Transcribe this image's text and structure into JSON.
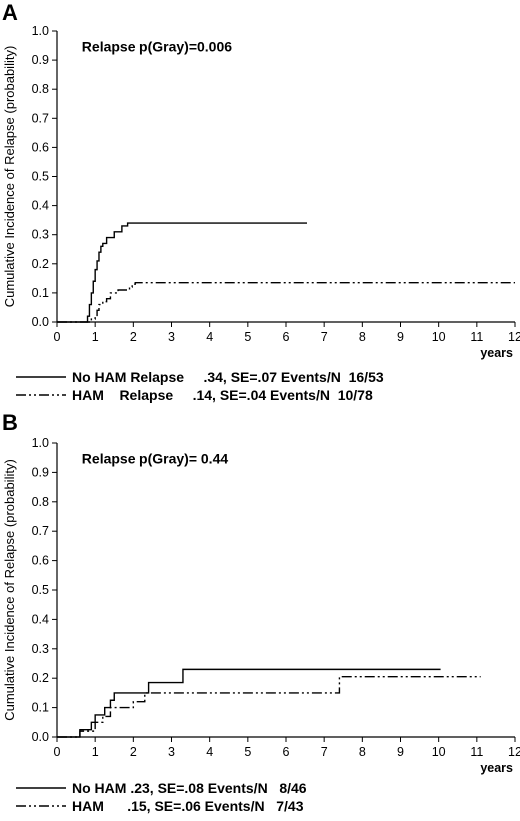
{
  "chart_data": [
    {
      "type": "line",
      "panel_label": "A",
      "ylabel": "Cumulative Incidence of Relapse (probability)",
      "xlabel": "years",
      "xlim": [
        0,
        12
      ],
      "ylim": [
        0,
        1.0
      ],
      "x_ticks": [
        "0",
        "1",
        "2",
        "3",
        "4",
        "5",
        "6",
        "7",
        "8",
        "9",
        "10",
        "11",
        "12"
      ],
      "y_ticks": [
        "0.0",
        "0.1",
        "0.2",
        "0.3",
        "0.4",
        "0.5",
        "0.6",
        "0.7",
        "0.8",
        "0.9",
        "1.0"
      ],
      "annotation_left": "Relapse",
      "annotation_right": "p(Gray)=0.006",
      "series": [
        {
          "style": "solid",
          "step_points": [
            [
              0,
              0
            ],
            [
              0.75,
              0
            ],
            [
              0.8,
              0.02
            ],
            [
              0.85,
              0.06
            ],
            [
              0.9,
              0.1
            ],
            [
              0.95,
              0.14
            ],
            [
              1.0,
              0.18
            ],
            [
              1.05,
              0.21
            ],
            [
              1.1,
              0.24
            ],
            [
              1.15,
              0.26
            ],
            [
              1.2,
              0.27
            ],
            [
              1.3,
              0.29
            ],
            [
              1.5,
              0.31
            ],
            [
              1.65,
              0.31
            ],
            [
              1.7,
              0.33
            ],
            [
              1.85,
              0.34
            ],
            [
              6.55,
              0.34
            ]
          ]
        },
        {
          "style": "dash-dot-dot",
          "step_points": [
            [
              0,
              0
            ],
            [
              0.85,
              0
            ],
            [
              0.9,
              0.01
            ],
            [
              1.0,
              0.02
            ],
            [
              1.05,
              0.04
            ],
            [
              1.1,
              0.06
            ],
            [
              1.2,
              0.07
            ],
            [
              1.3,
              0.08
            ],
            [
              1.4,
              0.1
            ],
            [
              1.6,
              0.11
            ],
            [
              1.9,
              0.12
            ],
            [
              1.97,
              0.13
            ],
            [
              2.05,
              0.135
            ],
            [
              12.0,
              0.135
            ]
          ]
        }
      ],
      "legend": [
        {
          "style": "solid",
          "text": "No HAM Relapse     .34, SE=.07 Events/N  16/53"
        },
        {
          "style": "dash-dot-dot",
          "text": "HAM    Relapse     .14, SE=.04 Events/N  10/78"
        }
      ]
    },
    {
      "type": "line",
      "panel_label": "B",
      "ylabel": "Cumulative Incidence of Relapse (probability)",
      "xlabel": "years",
      "xlim": [
        0,
        12
      ],
      "ylim": [
        0,
        1.0
      ],
      "x_ticks": [
        "0",
        "1",
        "2",
        "3",
        "4",
        "5",
        "6",
        "7",
        "8",
        "9",
        "10",
        "11",
        "12"
      ],
      "y_ticks": [
        "0.0",
        "0.1",
        "0.2",
        "0.3",
        "0.4",
        "0.5",
        "0.6",
        "0.7",
        "0.8",
        "0.9",
        "1.0"
      ],
      "annotation_left": "Relapse",
      "annotation_right": "p(Gray)= 0.44",
      "series": [
        {
          "style": "solid",
          "step_points": [
            [
              0,
              0
            ],
            [
              0.6,
              0
            ],
            [
              0.6,
              0.025
            ],
            [
              0.9,
              0.05
            ],
            [
              1.0,
              0.075
            ],
            [
              1.25,
              0.1
            ],
            [
              1.4,
              0.125
            ],
            [
              1.5,
              0.15
            ],
            [
              2.4,
              0.15
            ],
            [
              2.4,
              0.185
            ],
            [
              3.3,
              0.185
            ],
            [
              3.3,
              0.23
            ],
            [
              10.05,
              0.23
            ]
          ]
        },
        {
          "style": "dash-dot-dot",
          "step_points": [
            [
              0,
              0
            ],
            [
              0.6,
              0
            ],
            [
              0.6,
              0.02
            ],
            [
              1.0,
              0.05
            ],
            [
              1.2,
              0.07
            ],
            [
              1.4,
              0.1
            ],
            [
              2.0,
              0.12
            ],
            [
              2.3,
              0.15
            ],
            [
              7.4,
              0.15
            ],
            [
              7.4,
              0.205
            ],
            [
              11.1,
              0.205
            ]
          ]
        }
      ],
      "legend": [
        {
          "style": "solid",
          "text": "No HAM .23, SE=.08 Events/N   8/46"
        },
        {
          "style": "dash-dot-dot",
          "text": "HAM      .15, SE=.06 Events/N   7/43"
        }
      ]
    }
  ]
}
